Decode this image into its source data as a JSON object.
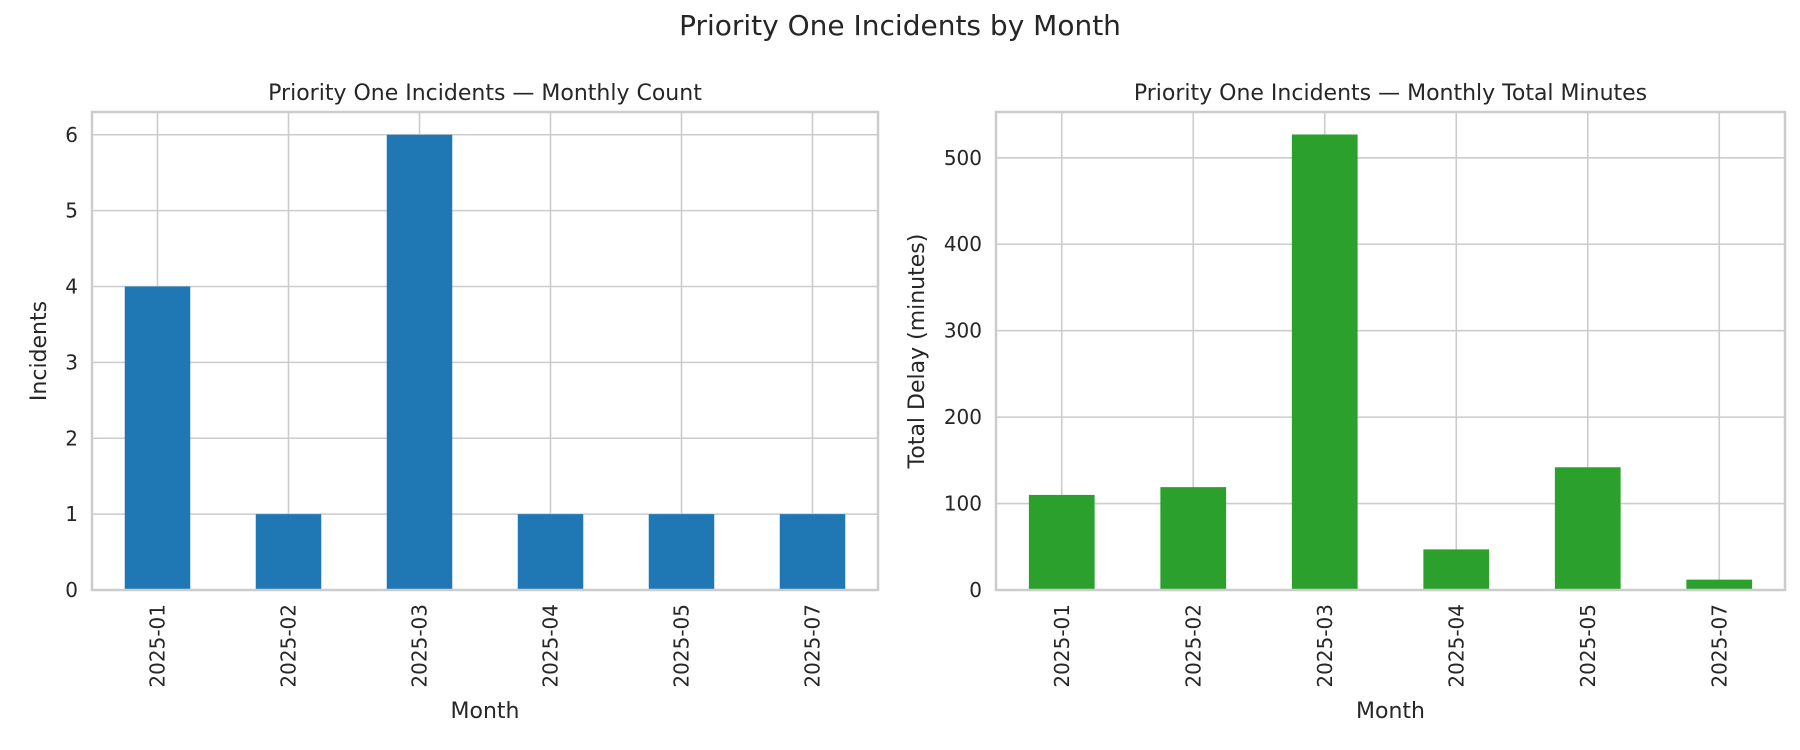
{
  "suptitle": "Priority One Incidents by Month",
  "colors": {
    "count": "#1f77b4",
    "minutes": "#2ca02c",
    "grid": "#cccccc",
    "axes": "#cccccc",
    "text": "#262626"
  },
  "chart_data": [
    {
      "type": "bar",
      "title": "Priority One Incidents — Monthly Count",
      "xlabel": "Month",
      "ylabel": "Incidents",
      "categories": [
        "2025-01",
        "2025-02",
        "2025-03",
        "2025-04",
        "2025-05",
        "2025-07"
      ],
      "values": [
        4,
        1,
        6,
        1,
        1,
        1
      ],
      "ylim": [
        0,
        6.3
      ],
      "yticks": [
        0,
        1,
        2,
        3,
        4,
        5,
        6
      ],
      "grid": true
    },
    {
      "type": "bar",
      "title": "Priority One Incidents — Monthly Total Minutes",
      "xlabel": "Month",
      "ylabel": "Total Delay (minutes)",
      "categories": [
        "2025-01",
        "2025-02",
        "2025-03",
        "2025-04",
        "2025-05",
        "2025-07"
      ],
      "values": [
        110,
        119,
        527,
        47,
        142,
        12
      ],
      "ylim": [
        0,
        553
      ],
      "yticks": [
        0,
        100,
        200,
        300,
        400,
        500
      ],
      "grid": true
    }
  ]
}
